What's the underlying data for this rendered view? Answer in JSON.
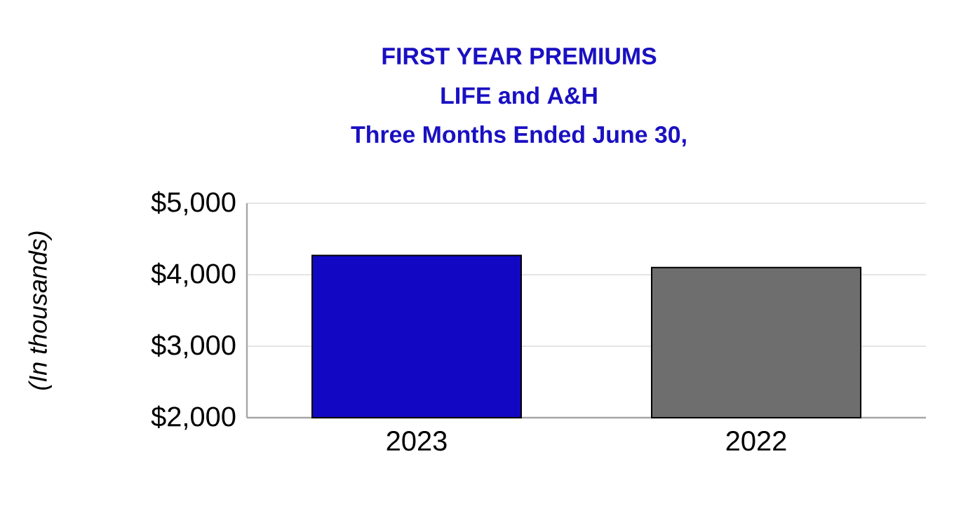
{
  "chart_data": {
    "type": "bar",
    "title": "FIRST YEAR PREMIUMS",
    "subtitle": "LIFE and A&H",
    "annotations": [
      "Three Months Ended June 30,"
    ],
    "ylabel": "*(In thousands)*",
    "categories": [
      "2023",
      "2022"
    ],
    "values": [
      4270,
      4100
    ],
    "colors": [
      "#1208c4",
      "#6e6e6e"
    ],
    "ylim": [
      2000,
      5000
    ],
    "yticks": [
      {
        "value": 2000,
        "label": "$2,000"
      },
      {
        "value": 3000,
        "label": "$3,000"
      },
      {
        "value": 4000,
        "label": "$4,000"
      },
      {
        "value": 5000,
        "label": "$5,000"
      }
    ],
    "grid": "y"
  }
}
